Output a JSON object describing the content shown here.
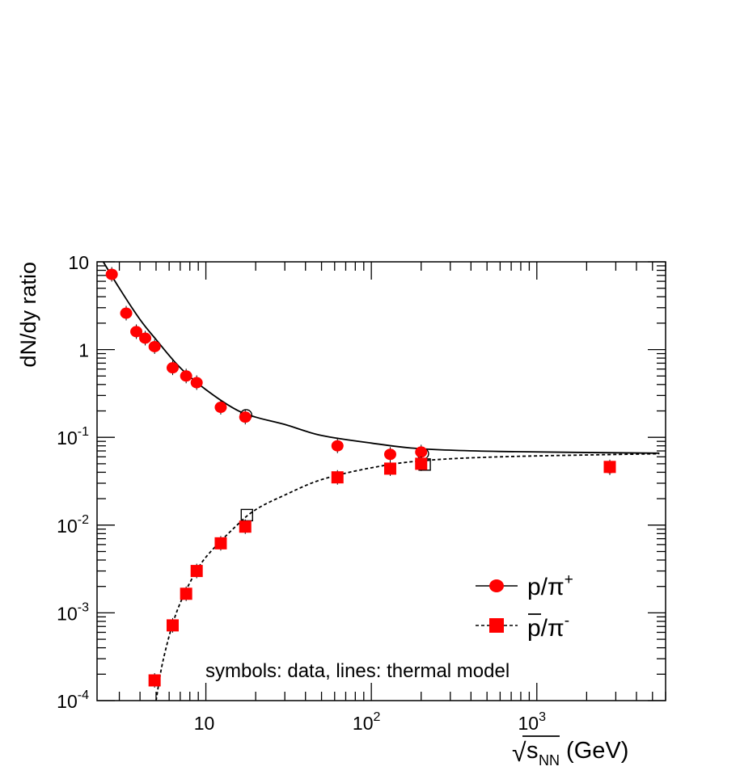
{
  "chart_data": {
    "type": "scatter",
    "xscale": "log",
    "yscale": "log",
    "xlim": [
      2.2,
      6000
    ],
    "ylim": [
      0.0001,
      10
    ],
    "grid": false,
    "legend_position": "bottom-right",
    "ylabel": "dN/dy ratio",
    "xlabel": {
      "prefix": "√",
      "main": "s",
      "subscript": "NN",
      "suffix": " (GeV)"
    },
    "x_ticks": [
      {
        "value": 10,
        "base": "10",
        "exp": ""
      },
      {
        "value": 100,
        "base": "10",
        "exp": "2"
      },
      {
        "value": 1000,
        "base": "10",
        "exp": "3"
      }
    ],
    "y_ticks": [
      {
        "value": 10,
        "base": "10",
        "exp": ""
      },
      {
        "value": 1,
        "base": "1",
        "exp": ""
      },
      {
        "value": 0.1,
        "base": "10",
        "exp": "-1"
      },
      {
        "value": 0.01,
        "base": "10",
        "exp": "-2"
      },
      {
        "value": 0.001,
        "base": "10",
        "exp": "-3"
      },
      {
        "value": 0.0001,
        "base": "10",
        "exp": "-4"
      }
    ],
    "annotation": "symbols: data, lines: thermal model",
    "series": [
      {
        "name": "p/π⁺",
        "legend_main": "p/π",
        "legend_sup": "+",
        "marker": "circle",
        "color": "#ff0000",
        "points": [
          {
            "x": 2.7,
            "y": 7.2
          },
          {
            "x": 3.3,
            "y": 2.6
          },
          {
            "x": 3.8,
            "y": 1.6
          },
          {
            "x": 4.3,
            "y": 1.35
          },
          {
            "x": 4.9,
            "y": 1.08
          },
          {
            "x": 6.3,
            "y": 0.62
          },
          {
            "x": 7.6,
            "y": 0.5
          },
          {
            "x": 8.8,
            "y": 0.42
          },
          {
            "x": 12.3,
            "y": 0.22
          },
          {
            "x": 17.3,
            "y": 0.17
          },
          {
            "x": 62.4,
            "y": 0.08
          },
          {
            "x": 130,
            "y": 0.064
          },
          {
            "x": 200,
            "y": 0.068
          },
          {
            "x": 2760,
            "y": 0.045
          }
        ],
        "open_points": [
          {
            "x": 17.5,
            "y": 0.18
          },
          {
            "x": 205,
            "y": 0.065
          }
        ],
        "model": {
          "line_style": "solid",
          "points": [
            {
              "x": 2.4,
              "y": 11
            },
            {
              "x": 3,
              "y": 5
            },
            {
              "x": 4,
              "y": 2.2
            },
            {
              "x": 5,
              "y": 1.3
            },
            {
              "x": 7,
              "y": 0.62
            },
            {
              "x": 10,
              "y": 0.35
            },
            {
              "x": 15,
              "y": 0.21
            },
            {
              "x": 20,
              "y": 0.17
            },
            {
              "x": 30,
              "y": 0.14
            },
            {
              "x": 50,
              "y": 0.105
            },
            {
              "x": 100,
              "y": 0.086
            },
            {
              "x": 200,
              "y": 0.074
            },
            {
              "x": 600,
              "y": 0.069
            },
            {
              "x": 5500,
              "y": 0.066
            }
          ]
        }
      },
      {
        "name": "p̄/π⁻",
        "legend_main": "p/π",
        "legend_sup": "-",
        "legend_overline": true,
        "marker": "square",
        "color": "#ff0000",
        "points": [
          {
            "x": 4.9,
            "y": 0.00017
          },
          {
            "x": 6.3,
            "y": 0.00072
          },
          {
            "x": 7.6,
            "y": 0.00165
          },
          {
            "x": 8.8,
            "y": 0.003
          },
          {
            "x": 12.3,
            "y": 0.0062
          },
          {
            "x": 17.3,
            "y": 0.0096
          },
          {
            "x": 62.4,
            "y": 0.035
          },
          {
            "x": 130,
            "y": 0.044
          },
          {
            "x": 200,
            "y": 0.05
          },
          {
            "x": 2760,
            "y": 0.046
          }
        ],
        "open_points": [
          {
            "x": 17.7,
            "y": 0.013
          },
          {
            "x": 210,
            "y": 0.049
          }
        ],
        "model": {
          "line_style": "dashed",
          "points": [
            {
              "x": 5.0,
              "y": 0.0001
            },
            {
              "x": 5.5,
              "y": 0.00028
            },
            {
              "x": 6.5,
              "y": 0.0009
            },
            {
              "x": 8,
              "y": 0.0022
            },
            {
              "x": 10,
              "y": 0.0043
            },
            {
              "x": 15,
              "y": 0.0095
            },
            {
              "x": 20,
              "y": 0.015
            },
            {
              "x": 30,
              "y": 0.022
            },
            {
              "x": 50,
              "y": 0.033
            },
            {
              "x": 100,
              "y": 0.045
            },
            {
              "x": 200,
              "y": 0.054
            },
            {
              "x": 600,
              "y": 0.06
            },
            {
              "x": 5500,
              "y": 0.065
            }
          ]
        }
      }
    ]
  }
}
